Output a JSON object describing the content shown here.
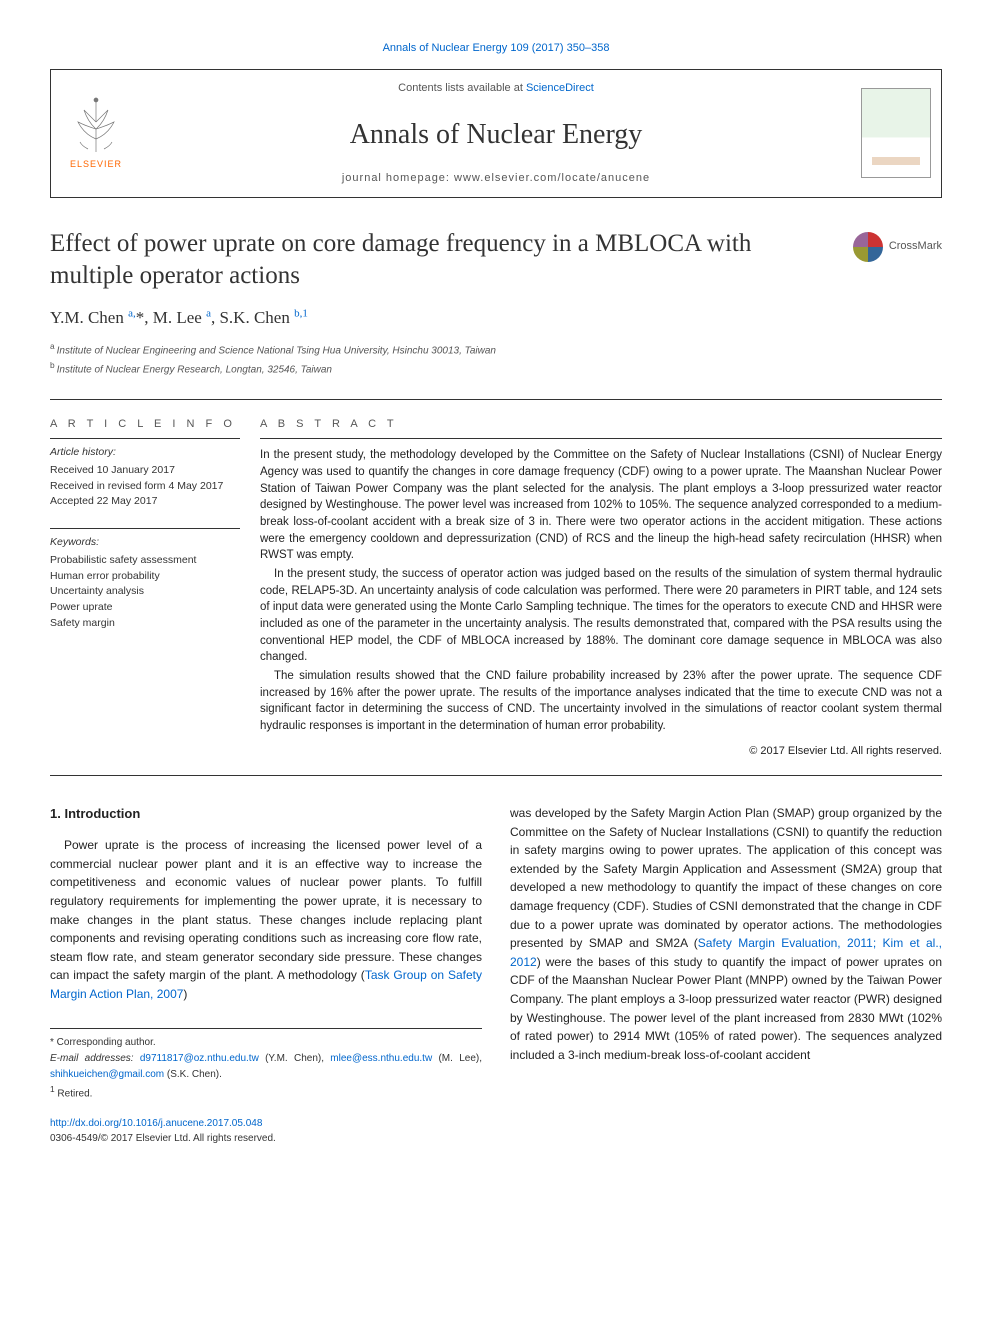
{
  "citation": "Annals of Nuclear Energy 109 (2017) 350–358",
  "header": {
    "contents_prefix": "Contents lists available at ",
    "contents_link": "ScienceDirect",
    "journal": "Annals of Nuclear Energy",
    "homepage_prefix": "journal homepage: ",
    "homepage": "www.elsevier.com/locate/anucene",
    "publisher": "ELSEVIER"
  },
  "crossmark": "CrossMark",
  "title": "Effect of power uprate on core damage frequency in a MBLOCA with multiple operator actions",
  "authors_html": "Y.M. Chen <sup>a,</sup><span class='star'>*</span>, M. Lee <sup>a</sup>, S.K. Chen <sup>b,1</sup>",
  "affiliations": {
    "a": "Institute of Nuclear Engineering and Science National Tsing Hua University, Hsinchu 30013, Taiwan",
    "b": "Institute of Nuclear Energy Research, Longtan, 32546, Taiwan"
  },
  "info": {
    "heading": "a r t i c l e   i n f o",
    "history_label": "Article history:",
    "history": [
      "Received 10 January 2017",
      "Received in revised form 4 May 2017",
      "Accepted 22 May 2017"
    ],
    "keywords_label": "Keywords:",
    "keywords": [
      "Probabilistic safety assessment",
      "Human error probability",
      "Uncertainty analysis",
      "Power uprate",
      "Safety margin"
    ]
  },
  "abstract": {
    "heading": "a b s t r a c t",
    "paragraphs": [
      "In the present study, the methodology developed by the Committee on the Safety of Nuclear Installations (CSNI) of Nuclear Energy Agency was used to quantify the changes in core damage frequency (CDF) owing to a power uprate. The Maanshan Nuclear Power Station of Taiwan Power Company was the plant selected for the analysis. The plant employs a 3-loop pressurized water reactor designed by Westinghouse. The power level was increased from 102% to 105%. The sequence analyzed corresponded to a medium-break loss-of-coolant accident with a break size of 3 in. There were two operator actions in the accident mitigation. These actions were the emergency cooldown and depressurization (CND) of RCS and the lineup the high-head safety recirculation (HHSR) when RWST was empty.",
      "In the present study, the success of operator action was judged based on the results of the simulation of system thermal hydraulic code, RELAP5-3D. An uncertainty analysis of code calculation was performed. There were 20 parameters in PIRT table, and 124 sets of input data were generated using the Monte Carlo Sampling technique. The times for the operators to execute CND and HHSR were included as one of the parameter in the uncertainty analysis. The results demonstrated that, compared with the PSA results using the conventional HEP model, the CDF of MBLOCA increased by 188%. The dominant core damage sequence in MBLOCA was also changed.",
      "The simulation results showed that the CND failure probability increased by 23% after the power uprate. The sequence CDF increased by 16% after the power uprate. The results of the importance analyses indicated that the time to execute CND was not a significant factor in determining the success of CND. The uncertainty involved in the simulations of reactor coolant system thermal hydraulic responses is important in the determination of human error probability."
    ],
    "copyright": "© 2017 Elsevier Ltd. All rights reserved."
  },
  "body": {
    "section_number": "1.",
    "section_title": "Introduction",
    "left": "Power uprate is the process of increasing the licensed power level of a commercial nuclear power plant and it is an effective way to increase the competitiveness and economic values of nuclear power plants. To fulfill regulatory requirements for implementing the power uprate, it is necessary to make changes in the plant status. These changes include replacing plant components and revising operating conditions such as increasing core flow rate, steam flow rate, and steam generator secondary side pressure. These changes can impact the safety margin of the plant. A methodology (",
    "left_ref": "Task Group on Safety Margin Action Plan, 2007",
    "left_tail": ")",
    "right_pre": "was developed by the Safety Margin Action Plan (SMAP) group organized by the Committee on the Safety of Nuclear Installations (CSNI) to quantify the reduction in safety margins owing to power uprates. The application of this concept was extended by the Safety Margin Application and Assessment (SM2A) group that developed a new methodology to quantify the impact of these changes on core damage frequency (CDF). Studies of CSNI demonstrated that the change in CDF due to a power uprate was dominated by operator actions. The methodologies presented by SMAP and SM2A (",
    "right_ref": "Safety Margin Evaluation, 2011; Kim et al., 2012",
    "right_post": ") were the bases of this study to quantify the impact of power uprates on CDF of the Maanshan Nuclear Power Plant (MNPP) owned by the Taiwan Power Company. The plant employs a 3-loop pressurized water reactor (PWR) designed by Westinghouse. The power level of the plant increased from 2830 MWt (102% of rated power) to 2914 MWt (105% of rated power). The sequences analyzed included a 3-inch medium-break loss-of-coolant accident"
  },
  "footnotes": {
    "corresponding": "Corresponding author.",
    "emails_label": "E-mail addresses:",
    "emails": [
      {
        "addr": "d9711817@oz.nthu.edu.tw",
        "who": "(Y.M. Chen)"
      },
      {
        "addr": "mlee@ess.nthu.edu.tw",
        "who": "(M. Lee)"
      },
      {
        "addr": "shihkueichen@gmail.com",
        "who": "(S.K. Chen)."
      }
    ],
    "note1": "Retired."
  },
  "footer": {
    "doi": "http://dx.doi.org/10.1016/j.anucene.2017.05.048",
    "issn_line": "0306-4549/© 2017 Elsevier Ltd. All rights reserved."
  },
  "colors": {
    "link": "#0066cc",
    "elsevier_orange": "#ff6600",
    "text": "#1a1a1a",
    "rule": "#333333"
  }
}
